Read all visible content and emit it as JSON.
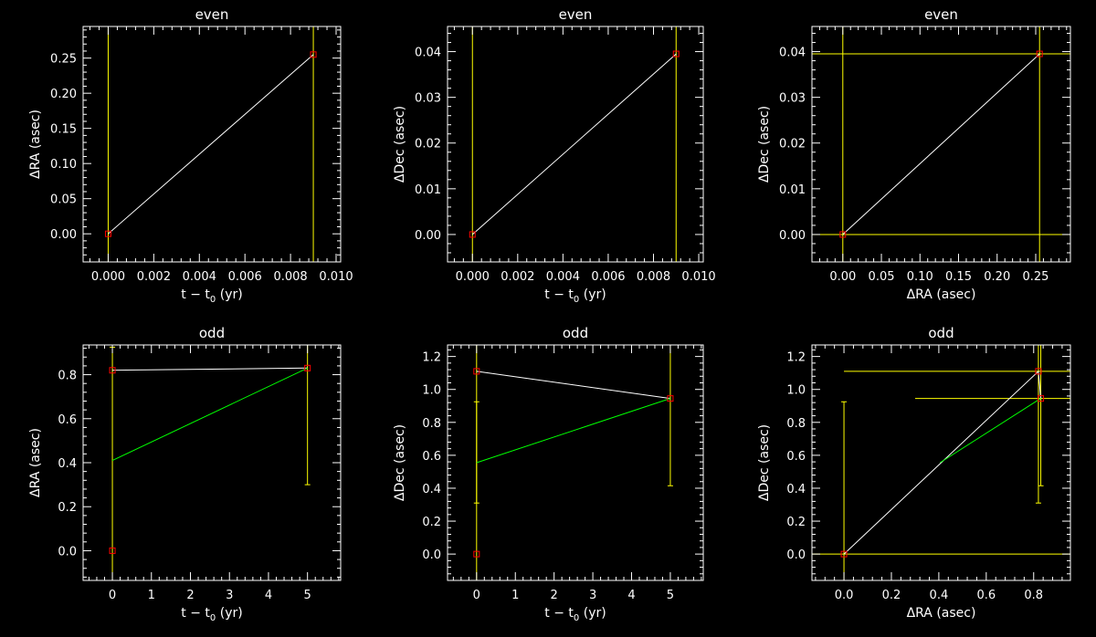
{
  "colors": {
    "background": "#000000",
    "axes": "#ffffff",
    "fit": "#ffffff",
    "model": "#00ff00",
    "errorbar": "#ffff00",
    "marker": "#ff0000"
  },
  "chart_data": [
    {
      "type": "line",
      "title": "even",
      "xlabel": "t − t",
      "xlabel_sub": "0",
      "xlabel_unit": " (yr)",
      "ylabel": "ΔRA (asec)",
      "xlim": [
        -0.0011,
        0.0102
      ],
      "ylim": [
        -0.04,
        0.295
      ],
      "xticks": [
        0.0,
        0.002,
        0.004,
        0.006,
        0.008,
        0.01
      ],
      "xticklabels": [
        "0.000",
        "0.002",
        "0.004",
        "0.006",
        "0.008",
        "0.010"
      ],
      "yticks": [
        0.0,
        0.05,
        0.1,
        0.15,
        0.2,
        0.25
      ],
      "yticklabels": [
        "0.00",
        "0.05",
        "0.10",
        "0.15",
        "0.20",
        "0.25"
      ],
      "points": [
        {
          "x": 0.0,
          "y": 0.0
        },
        {
          "x": 0.009,
          "y": 0.255
        }
      ],
      "series": [
        {
          "color": "#ffffff",
          "x": [
            0.0,
            0.009
          ],
          "y": [
            0.0,
            0.255
          ]
        }
      ],
      "vlines": [
        0.0,
        0.009
      ],
      "hlines": []
    },
    {
      "type": "line",
      "title": "even",
      "xlabel": "t − t",
      "xlabel_sub": "0",
      "xlabel_unit": " (yr)",
      "ylabel": "ΔDec (asec)",
      "xlim": [
        -0.0011,
        0.0102
      ],
      "ylim": [
        -0.006,
        0.0455
      ],
      "xticks": [
        0.0,
        0.002,
        0.004,
        0.006,
        0.008,
        0.01
      ],
      "xticklabels": [
        "0.000",
        "0.002",
        "0.004",
        "0.006",
        "0.008",
        "0.010"
      ],
      "yticks": [
        0.0,
        0.01,
        0.02,
        0.03,
        0.04
      ],
      "yticklabels": [
        "0.00",
        "0.01",
        "0.02",
        "0.03",
        "0.04"
      ],
      "points": [
        {
          "x": 0.0,
          "y": 0.0
        },
        {
          "x": 0.009,
          "y": 0.0395
        }
      ],
      "series": [
        {
          "color": "#ffffff",
          "x": [
            0.0,
            0.009
          ],
          "y": [
            0.0,
            0.0395
          ]
        }
      ],
      "vlines": [
        0.0,
        0.009
      ],
      "hlines": []
    },
    {
      "type": "line",
      "title": "even",
      "xlabel": "ΔRA (asec)",
      "xlabel_sub": "",
      "xlabel_unit": "",
      "ylabel": "ΔDec (asec)",
      "xlim": [
        -0.04,
        0.295
      ],
      "ylim": [
        -0.006,
        0.0455
      ],
      "xticks": [
        0.0,
        0.05,
        0.1,
        0.15,
        0.2,
        0.25
      ],
      "xticklabels": [
        "0.00",
        "0.05",
        "0.10",
        "0.15",
        "0.20",
        "0.25"
      ],
      "yticks": [
        0.0,
        0.01,
        0.02,
        0.03,
        0.04
      ],
      "yticklabels": [
        "0.00",
        "0.01",
        "0.02",
        "0.03",
        "0.04"
      ],
      "points": [
        {
          "x": 0.0,
          "y": 0.0
        },
        {
          "x": 0.255,
          "y": 0.0395
        }
      ],
      "series": [
        {
          "color": "#ffffff",
          "x": [
            0.0,
            0.255
          ],
          "y": [
            0.0,
            0.0395
          ]
        }
      ],
      "vlines": [
        0.0,
        0.255
      ],
      "hlines": [
        0.0,
        0.0395
      ]
    },
    {
      "type": "line",
      "title": "odd",
      "xlabel": "t − t",
      "xlabel_sub": "0",
      "xlabel_unit": " (yr)",
      "ylabel": "ΔRA (asec)",
      "xlim": [
        -0.75,
        5.85
      ],
      "ylim": [
        -0.135,
        0.935
      ],
      "xticks": [
        0,
        1,
        2,
        3,
        4,
        5
      ],
      "xticklabels": [
        "0",
        "1",
        "2",
        "3",
        "4",
        "5"
      ],
      "yticks": [
        0.0,
        0.2,
        0.4,
        0.6,
        0.8
      ],
      "yticklabels": [
        "0.0",
        "0.2",
        "0.4",
        "0.6",
        "0.8"
      ],
      "points": [
        {
          "x": 0,
          "y": 0.0
        },
        {
          "x": 0,
          "y": 0.82
        },
        {
          "x": 5,
          "y": 0.83
        }
      ],
      "series": [
        {
          "color": "#ffffff",
          "x": [
            0,
            5
          ],
          "y": [
            0.82,
            0.83
          ]
        },
        {
          "color": "#00ff00",
          "x": [
            0,
            5
          ],
          "y": [
            0.41,
            0.83
          ]
        }
      ],
      "errorbars": [
        {
          "x": 0,
          "y0": -0.135,
          "y1": 0.925
        },
        {
          "x": 5,
          "y0": 0.3,
          "y1": 0.935
        }
      ],
      "vlines": [],
      "hlines": []
    },
    {
      "type": "line",
      "title": "odd",
      "xlabel": "t − t",
      "xlabel_sub": "0",
      "xlabel_unit": " (yr)",
      "ylabel": "ΔDec (asec)",
      "xlim": [
        -0.75,
        5.85
      ],
      "ylim": [
        -0.16,
        1.27
      ],
      "xticks": [
        0,
        1,
        2,
        3,
        4,
        5
      ],
      "xticklabels": [
        "0",
        "1",
        "2",
        "3",
        "4",
        "5"
      ],
      "yticks": [
        0.0,
        0.2,
        0.4,
        0.6,
        0.8,
        1.0,
        1.2
      ],
      "yticklabels": [
        "0.0",
        "0.2",
        "0.4",
        "0.6",
        "0.8",
        "1.0",
        "1.2"
      ],
      "points": [
        {
          "x": 0,
          "y": 0.0
        },
        {
          "x": 0,
          "y": 1.11
        },
        {
          "x": 5,
          "y": 0.945
        }
      ],
      "series": [
        {
          "color": "#ffffff",
          "x": [
            0,
            5
          ],
          "y": [
            1.11,
            0.945
          ]
        },
        {
          "color": "#00ff00",
          "x": [
            0,
            5
          ],
          "y": [
            0.555,
            0.945
          ]
        }
      ],
      "errorbars": [
        {
          "x": 0,
          "y0": 0.31,
          "y1": 0.925
        },
        {
          "x": 0,
          "y0": -0.16,
          "y1": 1.27
        },
        {
          "x": 5,
          "y0": 0.415,
          "y1": 1.27
        }
      ],
      "vlines": [],
      "hlines": []
    },
    {
      "type": "line",
      "title": "odd",
      "xlabel": "ΔRA (asec)",
      "xlabel_sub": "",
      "xlabel_unit": "",
      "ylabel": "ΔDec (asec)",
      "xlim": [
        -0.135,
        0.955
      ],
      "ylim": [
        -0.16,
        1.27
      ],
      "xticks": [
        0.0,
        0.2,
        0.4,
        0.6,
        0.8
      ],
      "xticklabels": [
        "0.0",
        "0.2",
        "0.4",
        "0.6",
        "0.8"
      ],
      "yticks": [
        0.0,
        0.2,
        0.4,
        0.6,
        0.8,
        1.0,
        1.2
      ],
      "yticklabels": [
        "0.0",
        "0.2",
        "0.4",
        "0.6",
        "0.8",
        "1.0",
        "1.2"
      ],
      "points": [
        {
          "x": 0.0,
          "y": 0.0
        },
        {
          "x": 0.82,
          "y": 1.11
        },
        {
          "x": 0.83,
          "y": 0.945
        }
      ],
      "series": [
        {
          "color": "#ffffff",
          "x": [
            0.0,
            0.82,
            0.83
          ],
          "y": [
            0.0,
            1.11,
            0.945
          ]
        },
        {
          "color": "#00ff00",
          "x": [
            0.405,
            0.83
          ],
          "y": [
            0.555,
            0.945
          ]
        }
      ],
      "errorbars": [
        {
          "x": 0.0,
          "y0": -0.16,
          "y1": 0.925
        },
        {
          "x": 0.82,
          "y0": 0.31,
          "y1": 1.27
        },
        {
          "x": 0.83,
          "y0": 0.415,
          "y1": 1.27
        }
      ],
      "hsegments": [
        {
          "y": 0.0,
          "x0": -0.135,
          "x1": 0.955
        },
        {
          "y": 1.11,
          "x0": 0.0,
          "x1": 0.955
        },
        {
          "y": 0.945,
          "x0": 0.3,
          "x1": 0.955
        }
      ],
      "vlines": [],
      "hlines": []
    }
  ]
}
